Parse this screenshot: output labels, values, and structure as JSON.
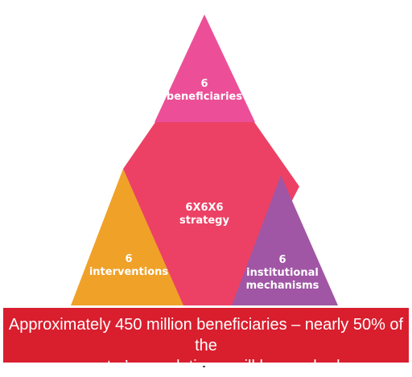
{
  "diagram": {
    "top": {
      "line1": "6",
      "line2": "beneficiaries",
      "color": "#ec4f97"
    },
    "center": {
      "line1": "6X6X6",
      "line2": "strategy",
      "color": "#ec4164"
    },
    "left": {
      "line1": "6",
      "line2": "interventions",
      "color": "#f0a128"
    },
    "right": {
      "line1": "6",
      "line2": "institutional",
      "line3": "mechanisms",
      "color": "#a056a4"
    }
  },
  "banner": {
    "line1": "Approximately 450 million beneficiaries – nearly 50% of the",
    "line2": "country’s population – will be reached",
    "color": "#d91e2e"
  }
}
